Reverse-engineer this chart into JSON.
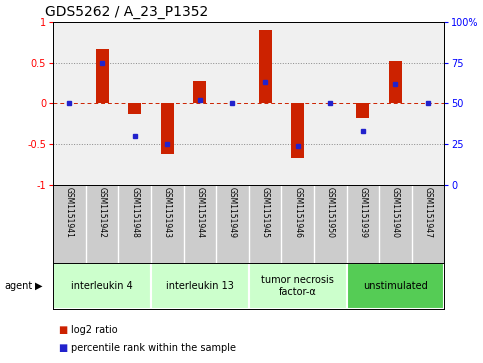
{
  "title": "GDS5262 / A_23_P1352",
  "samples": [
    "GSM1151941",
    "GSM1151942",
    "GSM1151948",
    "GSM1151943",
    "GSM1151944",
    "GSM1151949",
    "GSM1151945",
    "GSM1151946",
    "GSM1151950",
    "GSM1151939",
    "GSM1151940",
    "GSM1151947"
  ],
  "log2_ratios": [
    0.0,
    0.67,
    -0.13,
    -0.62,
    0.28,
    0.0,
    0.9,
    -0.67,
    0.0,
    -0.18,
    0.52,
    0.0
  ],
  "percentile_ranks": [
    50,
    75,
    30,
    25,
    52,
    50,
    63,
    24,
    50,
    33,
    62,
    50
  ],
  "agents": [
    {
      "label": "interleukin 4",
      "indices": [
        0,
        1,
        2
      ],
      "color": "#ccffcc"
    },
    {
      "label": "interleukin 13",
      "indices": [
        3,
        4,
        5
      ],
      "color": "#ccffcc"
    },
    {
      "label": "tumor necrosis\nfactor-α",
      "indices": [
        6,
        7,
        8
      ],
      "color": "#ccffcc"
    },
    {
      "label": "unstimulated",
      "indices": [
        9,
        10,
        11
      ],
      "color": "#55cc55"
    }
  ],
  "ylim": [
    -1,
    1
  ],
  "yticks_left": [
    -1,
    -0.5,
    0,
    0.5,
    1
  ],
  "right_tick_positions": [
    -1,
    -0.5,
    0,
    0.5,
    1
  ],
  "right_tick_labels": [
    "0",
    "25",
    "50",
    "75",
    "100%"
  ],
  "bar_color": "#cc2200",
  "dot_color": "#2222cc",
  "plot_bg": "#f0f0f0",
  "sample_bg": "#cccccc",
  "zero_line_color": "#cc2200",
  "dotted_line_color": "#888888",
  "title_fontsize": 10,
  "tick_fontsize": 7,
  "sample_fontsize": 5.5,
  "agent_fontsize": 7,
  "legend_fontsize": 7,
  "bar_width": 0.4
}
